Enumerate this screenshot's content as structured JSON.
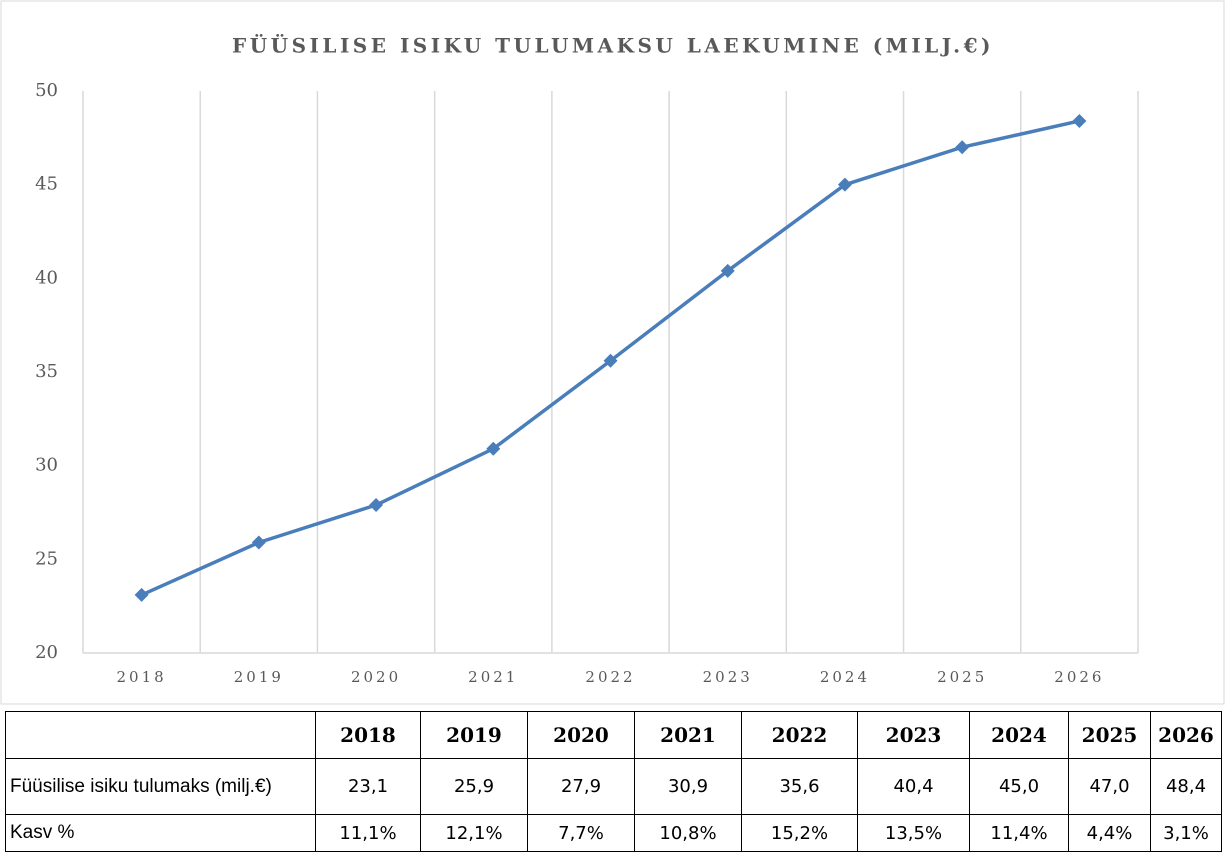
{
  "chart_data": {
    "type": "line",
    "title": "FÜÜSILISE ISIKU TULUMAKSU LAEKUMINE (MILJ.€)",
    "categories": [
      "2018",
      "2019",
      "2020",
      "2021",
      "2022",
      "2023",
      "2024",
      "2025",
      "2026"
    ],
    "series": [
      {
        "color": "#4a7ebb",
        "values": [
          23.1,
          25.9,
          27.9,
          30.9,
          35.6,
          40.4,
          45.0,
          47.0,
          48.4
        ]
      }
    ],
    "ylim": [
      20,
      50
    ],
    "yticks": [
      20,
      25,
      30,
      35,
      40,
      45,
      50
    ],
    "grid": "vertical"
  },
  "table": {
    "header": [
      "2018",
      "2019",
      "2020",
      "2021",
      "2022",
      "2023",
      "2024",
      "2025",
      "2026"
    ],
    "rows": [
      [
        "Füüsilise isiku tulumaks (milj.€)",
        "23,1",
        "25,9",
        "27,9",
        "30,9",
        "35,6",
        "40,4",
        "45,0",
        "47,0",
        "48,4"
      ],
      [
        "Kasv %",
        "11,1%",
        "12,1%",
        "7,7%",
        "10,8%",
        "15,2%",
        "13,5%",
        "11,4%",
        "4,4%",
        "3,1%"
      ]
    ]
  }
}
